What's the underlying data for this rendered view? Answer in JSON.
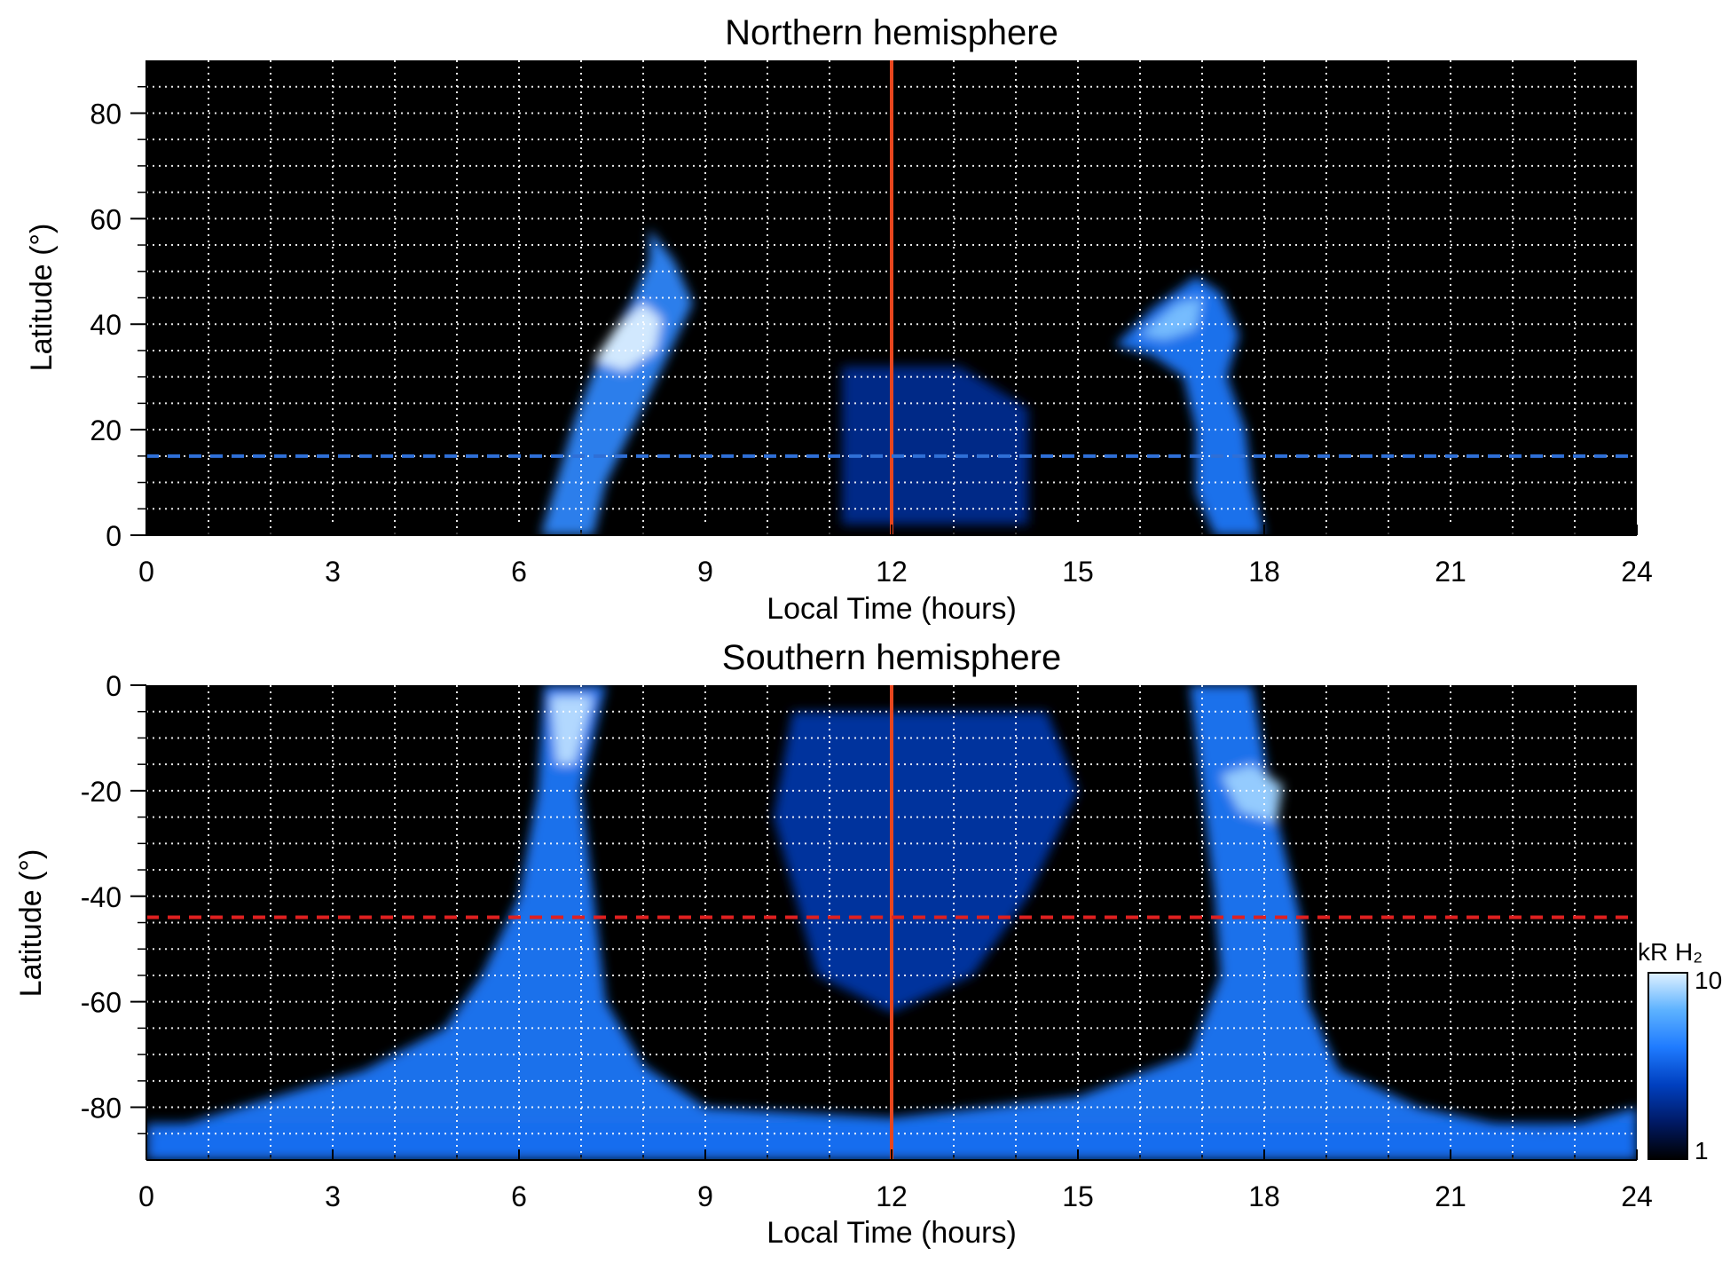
{
  "chart_data": [
    {
      "type": "heatmap",
      "title": "Northern hemisphere",
      "xlabel": "Local Time (hours)",
      "ylabel": "Latitude (°)",
      "xlim": [
        0,
        24
      ],
      "ylim": [
        0,
        90
      ],
      "xticks": [
        0,
        3,
        6,
        9,
        12,
        15,
        18,
        21,
        24
      ],
      "yticks": [
        0,
        20,
        40,
        60,
        80
      ],
      "grid": true,
      "background": "#000000",
      "vertical_line": {
        "x": 12,
        "color": "#e8461e"
      },
      "dashed_line": {
        "y": 15,
        "color": "#2f6fd6"
      },
      "emission_regions": [
        {
          "name": "dawn",
          "points": [
            [
              6.35,
              0
            ],
            [
              6.6,
              10
            ],
            [
              6.9,
              22
            ],
            [
              7.3,
              34
            ],
            [
              7.8,
              44
            ],
            [
              8.1,
              52
            ],
            [
              8.1,
              58
            ],
            [
              8.5,
              52
            ],
            [
              8.8,
              44
            ],
            [
              8.4,
              34
            ],
            [
              7.9,
              22
            ],
            [
              7.4,
              10
            ],
            [
              7.2,
              0
            ]
          ],
          "intensity": 0.65
        },
        {
          "name": "dawn-core",
          "points": [
            [
              7.2,
              33
            ],
            [
              7.6,
              40
            ],
            [
              8.0,
              44
            ],
            [
              8.3,
              41
            ],
            [
              8.2,
              35
            ],
            [
              7.7,
              31
            ]
          ],
          "intensity": 1.0
        },
        {
          "name": "dusk",
          "points": [
            [
              15.6,
              36
            ],
            [
              16.2,
              43
            ],
            [
              16.9,
              49
            ],
            [
              17.3,
              46
            ],
            [
              17.6,
              38
            ],
            [
              17.4,
              30
            ],
            [
              17.7,
              20
            ],
            [
              17.8,
              10
            ],
            [
              18.0,
              0
            ],
            [
              17.2,
              0
            ],
            [
              16.9,
              8
            ],
            [
              16.9,
              20
            ],
            [
              16.7,
              30
            ],
            [
              16.2,
              34
            ]
          ],
          "intensity": 0.6
        },
        {
          "name": "dusk-core",
          "points": [
            [
              16.0,
              38
            ],
            [
              16.6,
              44
            ],
            [
              17.0,
              45
            ],
            [
              16.9,
              39
            ],
            [
              16.4,
              37
            ]
          ],
          "intensity": 0.85
        },
        {
          "name": "noon-patches",
          "points": [
            [
              11.2,
              2
            ],
            [
              11.2,
              32
            ],
            [
              13.1,
              32
            ],
            [
              14.2,
              24
            ],
            [
              14.2,
              2
            ]
          ],
          "intensity": 0.3
        }
      ]
    },
    {
      "type": "heatmap",
      "title": "Southern hemisphere",
      "xlabel": "Local Time (hours)",
      "ylabel": "Latitude (°)",
      "xlim": [
        0,
        24
      ],
      "ylim": [
        -90,
        0
      ],
      "xticks": [
        0,
        3,
        6,
        9,
        12,
        15,
        18,
        21,
        24
      ],
      "yticks": [
        0,
        -20,
        -40,
        -60,
        -80
      ],
      "grid": true,
      "background": "#000000",
      "vertical_line": {
        "x": 12,
        "color": "#e8461e"
      },
      "dashed_line": {
        "y": -44,
        "color": "#e02020"
      },
      "emission_regions": [
        {
          "name": "dawn-column",
          "points": [
            [
              6.4,
              0
            ],
            [
              6.3,
              -20
            ],
            [
              6.0,
              -40
            ],
            [
              5.4,
              -55
            ],
            [
              4.8,
              -65
            ],
            [
              3.5,
              -73
            ],
            [
              1.5,
              -80
            ],
            [
              0.1,
              -85
            ],
            [
              0.1,
              -90
            ],
            [
              24,
              -90
            ],
            [
              24,
              -80
            ],
            [
              22.5,
              -85
            ],
            [
              20.5,
              -80
            ],
            [
              19.2,
              -73
            ],
            [
              18.7,
              -60
            ],
            [
              18.6,
              -45
            ],
            [
              18.3,
              -30
            ],
            [
              18.1,
              -20
            ],
            [
              17.8,
              0
            ],
            [
              16.8,
              0
            ],
            [
              17.0,
              -20
            ],
            [
              17.2,
              -40
            ],
            [
              17.3,
              -55
            ],
            [
              16.8,
              -70
            ],
            [
              15.0,
              -78
            ],
            [
              12.0,
              -82
            ],
            [
              9.0,
              -80
            ],
            [
              8.0,
              -72
            ],
            [
              7.4,
              -60
            ],
            [
              7.2,
              -40
            ],
            [
              7.0,
              -20
            ],
            [
              7.4,
              0
            ]
          ],
          "intensity": 0.6
        },
        {
          "name": "dawn-core",
          "points": [
            [
              6.5,
              -2
            ],
            [
              6.6,
              -15
            ],
            [
              6.9,
              -15
            ],
            [
              7.2,
              -2
            ]
          ],
          "intensity": 0.95
        },
        {
          "name": "dusk-core",
          "points": [
            [
              17.3,
              -17
            ],
            [
              17.6,
              -24
            ],
            [
              18.2,
              -26
            ],
            [
              18.3,
              -19
            ],
            [
              17.8,
              -15
            ]
          ],
          "intensity": 0.9
        },
        {
          "name": "noon-patches",
          "points": [
            [
              10.4,
              -5
            ],
            [
              10.1,
              -25
            ],
            [
              10.8,
              -55
            ],
            [
              12.0,
              -62
            ],
            [
              13.3,
              -55
            ],
            [
              14.2,
              -40
            ],
            [
              15.0,
              -20
            ],
            [
              14.5,
              -5
            ]
          ],
          "intensity": 0.35
        },
        {
          "name": "polar-band",
          "points": [
            [
              0,
              -83
            ],
            [
              24,
              -83
            ],
            [
              24,
              -90
            ],
            [
              0,
              -90
            ]
          ],
          "intensity": 0.55
        }
      ]
    }
  ],
  "colorbar": {
    "label": "kR H₂",
    "scale": "log",
    "min_label": "1",
    "max_label": "10",
    "stops": [
      "#000000",
      "#001a66",
      "#0040c0",
      "#1f7bff",
      "#5db2ff",
      "#dff1ff"
    ]
  }
}
